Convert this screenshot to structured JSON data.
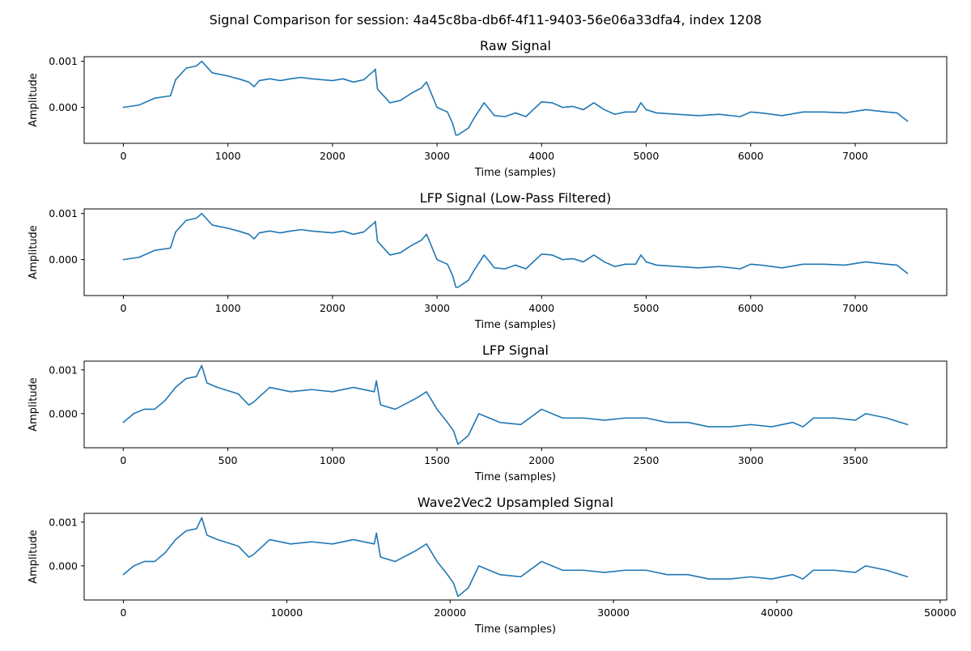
{
  "figure": {
    "suptitle": "Signal Comparison for session: 4a45c8ba-db6f-4f11-9403-56e06a33dfa4, index 1208"
  },
  "chart_data": [
    {
      "type": "line",
      "title": "Raw Signal",
      "xlabel": "Time (samples)",
      "ylabel": "Amplitude",
      "xlim": [
        -375,
        7875
      ],
      "ylim": [
        -0.00078,
        0.0011
      ],
      "xticks": [
        0,
        1000,
        2000,
        3000,
        4000,
        5000,
        6000,
        7000
      ],
      "xtick_labels": [
        "0",
        "1000",
        "2000",
        "3000",
        "4000",
        "5000",
        "6000",
        "7000"
      ],
      "yticks": [
        0.0,
        0.001
      ],
      "ytick_labels": [
        "0.000",
        "0.001"
      ],
      "grid": false,
      "color": "#1f77b4",
      "series": [
        {
          "x": [
            0,
            150,
            300,
            450,
            500,
            600,
            700,
            750,
            850,
            1000,
            1100,
            1200,
            1250,
            1300,
            1400,
            1500,
            1600,
            1700,
            1800,
            1900,
            2000,
            2100,
            2200,
            2300,
            2400,
            2410,
            2430,
            2470,
            2550,
            2650,
            2750,
            2850,
            2900,
            3000,
            3100,
            3150,
            3180,
            3200,
            3300,
            3350,
            3450,
            3550,
            3650,
            3750,
            3850,
            4000,
            4100,
            4200,
            4300,
            4400,
            4500,
            4600,
            4700,
            4800,
            4900,
            4950,
            5000,
            5100,
            5300,
            5500,
            5700,
            5900,
            6000,
            6100,
            6300,
            6500,
            6700,
            6900,
            7100,
            7300,
            7400,
            7500
          ],
          "y": [
            0.0,
            5e-05,
            0.0002,
            0.00025,
            0.0006,
            0.00085,
            0.0009,
            0.001,
            0.00075,
            0.00068,
            0.00062,
            0.00055,
            0.00045,
            0.00058,
            0.00062,
            0.00058,
            0.00062,
            0.00065,
            0.00062,
            0.0006,
            0.00058,
            0.00062,
            0.00055,
            0.0006,
            0.0008,
            0.00083,
            0.0004,
            0.0003,
            0.0001,
            0.00015,
            0.0003,
            0.00042,
            0.00055,
            0.0,
            -0.0001,
            -0.00035,
            -0.0006,
            -0.0006,
            -0.00045,
            -0.00025,
            0.0001,
            -0.00018,
            -0.0002,
            -0.00012,
            -0.0002,
            0.00012,
            0.0001,
            0.0,
            2e-05,
            -5e-05,
            0.0001,
            -5e-05,
            -0.00015,
            -0.0001,
            -0.0001,
            0.0001,
            -5e-05,
            -0.00012,
            -0.00015,
            -0.00018,
            -0.00015,
            -0.0002,
            -0.0001,
            -0.00012,
            -0.00018,
            -0.0001,
            -0.0001,
            -0.00012,
            -5e-05,
            -0.0001,
            -0.00012,
            -0.0003
          ]
        }
      ]
    },
    {
      "type": "line",
      "title": "LFP Signal (Low-Pass Filtered)",
      "xlabel": "Time (samples)",
      "ylabel": "Amplitude",
      "xlim": [
        -375,
        7875
      ],
      "ylim": [
        -0.00078,
        0.0011
      ],
      "xticks": [
        0,
        1000,
        2000,
        3000,
        4000,
        5000,
        6000,
        7000
      ],
      "xtick_labels": [
        "0",
        "1000",
        "2000",
        "3000",
        "4000",
        "5000",
        "6000",
        "7000"
      ],
      "yticks": [
        0.0,
        0.001
      ],
      "ytick_labels": [
        "0.000",
        "0.001"
      ],
      "grid": false,
      "color": "#1f77b4",
      "series": [
        {
          "x": [
            0,
            150,
            300,
            450,
            500,
            600,
            700,
            750,
            850,
            1000,
            1100,
            1200,
            1250,
            1300,
            1400,
            1500,
            1600,
            1700,
            1800,
            1900,
            2000,
            2100,
            2200,
            2300,
            2400,
            2410,
            2430,
            2470,
            2550,
            2650,
            2750,
            2850,
            2900,
            3000,
            3100,
            3150,
            3180,
            3200,
            3300,
            3350,
            3450,
            3550,
            3650,
            3750,
            3850,
            4000,
            4100,
            4200,
            4300,
            4400,
            4500,
            4600,
            4700,
            4800,
            4900,
            4950,
            5000,
            5100,
            5300,
            5500,
            5700,
            5900,
            6000,
            6100,
            6300,
            6500,
            6700,
            6900,
            7100,
            7300,
            7400,
            7500
          ],
          "y": [
            0.0,
            5e-05,
            0.0002,
            0.00025,
            0.0006,
            0.00085,
            0.0009,
            0.001,
            0.00075,
            0.00068,
            0.00062,
            0.00055,
            0.00045,
            0.00058,
            0.00062,
            0.00058,
            0.00062,
            0.00065,
            0.00062,
            0.0006,
            0.00058,
            0.00062,
            0.00055,
            0.0006,
            0.0008,
            0.00083,
            0.0004,
            0.0003,
            0.0001,
            0.00015,
            0.0003,
            0.00042,
            0.00055,
            0.0,
            -0.0001,
            -0.00035,
            -0.0006,
            -0.0006,
            -0.00045,
            -0.00025,
            0.0001,
            -0.00018,
            -0.0002,
            -0.00012,
            -0.0002,
            0.00012,
            0.0001,
            0.0,
            2e-05,
            -5e-05,
            0.0001,
            -5e-05,
            -0.00015,
            -0.0001,
            -0.0001,
            0.0001,
            -5e-05,
            -0.00012,
            -0.00015,
            -0.00018,
            -0.00015,
            -0.0002,
            -0.0001,
            -0.00012,
            -0.00018,
            -0.0001,
            -0.0001,
            -0.00012,
            -5e-05,
            -0.0001,
            -0.00012,
            -0.0003
          ]
        }
      ]
    },
    {
      "type": "line",
      "title": "LFP Signal",
      "xlabel": "Time (samples)",
      "ylabel": "Amplitude",
      "xlim": [
        -187,
        3937
      ],
      "ylim": [
        -0.00078,
        0.0012
      ],
      "xticks": [
        0,
        500,
        1000,
        1500,
        2000,
        2500,
        3000,
        3500
      ],
      "xtick_labels": [
        "0",
        "500",
        "1000",
        "1500",
        "2000",
        "2500",
        "3000",
        "3500"
      ],
      "yticks": [
        0.0,
        0.001
      ],
      "ytick_labels": [
        "0.000",
        "0.001"
      ],
      "grid": false,
      "color": "#1f77b4",
      "series": [
        {
          "x": [
            0,
            50,
            100,
            150,
            200,
            250,
            300,
            350,
            375,
            400,
            450,
            550,
            600,
            620,
            700,
            800,
            900,
            1000,
            1100,
            1200,
            1210,
            1230,
            1300,
            1400,
            1450,
            1500,
            1550,
            1580,
            1600,
            1650,
            1700,
            1800,
            1900,
            2000,
            2100,
            2200,
            2300,
            2400,
            2500,
            2600,
            2700,
            2800,
            2900,
            3000,
            3100,
            3200,
            3250,
            3300,
            3400,
            3500,
            3550,
            3650,
            3750
          ],
          "y": [
            -0.0002,
            0.0,
            0.0001,
            0.0001,
            0.0003,
            0.0006,
            0.0008,
            0.00085,
            0.0011,
            0.0007,
            0.0006,
            0.00045,
            0.0002,
            0.00025,
            0.0006,
            0.0005,
            0.00055,
            0.0005,
            0.0006,
            0.0005,
            0.00075,
            0.0002,
            0.0001,
            0.00035,
            0.0005,
            0.0001,
            -0.0002,
            -0.0004,
            -0.0007,
            -0.0005,
            0.0,
            -0.0002,
            -0.00025,
            0.0001,
            -0.0001,
            -0.0001,
            -0.00015,
            -0.0001,
            -0.0001,
            -0.0002,
            -0.0002,
            -0.0003,
            -0.0003,
            -0.00025,
            -0.0003,
            -0.0002,
            -0.0003,
            -0.0001,
            -0.0001,
            -0.00015,
            0.0,
            -0.0001,
            -0.00025
          ]
        }
      ]
    },
    {
      "type": "line",
      "title": "Wave2Vec2 Upsampled Signal",
      "xlabel": "Time (samples)",
      "ylabel": "Amplitude",
      "xlim": [
        -2400,
        50400
      ],
      "ylim": [
        -0.00078,
        0.0012
      ],
      "xticks": [
        0,
        10000,
        20000,
        30000,
        40000,
        50000
      ],
      "xtick_labels": [
        "0",
        "10000",
        "20000",
        "30000",
        "40000",
        "50000"
      ],
      "yticks": [
        0.0,
        0.001
      ],
      "ytick_labels": [
        "0.000",
        "0.001"
      ],
      "grid": false,
      "color": "#1f77b4",
      "series": [
        {
          "x": [
            0,
            640,
            1280,
            1920,
            2560,
            3200,
            3840,
            4480,
            4800,
            5120,
            5760,
            7040,
            7680,
            7940,
            8960,
            10240,
            11520,
            12800,
            14080,
            15360,
            15490,
            15740,
            16640,
            17920,
            18560,
            19200,
            19840,
            20220,
            20480,
            21120,
            21760,
            23040,
            24320,
            25600,
            26880,
            28160,
            29440,
            30720,
            32000,
            33280,
            34560,
            35840,
            37120,
            38400,
            39680,
            40960,
            41600,
            42240,
            43520,
            44800,
            45440,
            46720,
            48000
          ],
          "y": [
            -0.0002,
            0.0,
            0.0001,
            0.0001,
            0.0003,
            0.0006,
            0.0008,
            0.00085,
            0.0011,
            0.0007,
            0.0006,
            0.00045,
            0.0002,
            0.00025,
            0.0006,
            0.0005,
            0.00055,
            0.0005,
            0.0006,
            0.0005,
            0.00075,
            0.0002,
            0.0001,
            0.00035,
            0.0005,
            0.0001,
            -0.0002,
            -0.0004,
            -0.0007,
            -0.0005,
            0.0,
            -0.0002,
            -0.00025,
            0.0001,
            -0.0001,
            -0.0001,
            -0.00015,
            -0.0001,
            -0.0001,
            -0.0002,
            -0.0002,
            -0.0003,
            -0.0003,
            -0.00025,
            -0.0003,
            -0.0002,
            -0.0003,
            -0.0001,
            -0.0001,
            -0.00015,
            0.0,
            -0.0001,
            -0.00025
          ]
        }
      ]
    }
  ]
}
